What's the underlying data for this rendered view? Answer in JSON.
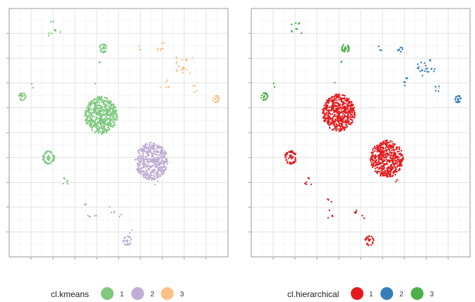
{
  "chart_data": [
    {
      "type": "scatter",
      "title": "",
      "xlabel": "",
      "ylabel": "",
      "grid": true,
      "axis_ticks_shown": true,
      "axis_labels_shown": false,
      "xlim": [
        0,
        100
      ],
      "ylim": [
        0,
        100
      ],
      "legend": {
        "title": "cl.kmeans",
        "placement": "bottom",
        "entries": [
          {
            "label": "1",
            "color": "#7fc97f"
          },
          {
            "label": "2",
            "color": "#beaed4"
          },
          {
            "label": "3",
            "color": "#fdc086"
          }
        ]
      },
      "clusters": [
        {
          "cluster": "1",
          "shape": "disc",
          "cx": 42,
          "cy": 57,
          "r": 7.5,
          "n": 520
        },
        {
          "cluster": "1",
          "shape": "ring",
          "cx": 18,
          "cy": 40,
          "r": 2.6,
          "n": 70
        },
        {
          "cluster": "1",
          "shape": "ring",
          "cx": 43,
          "cy": 84,
          "r": 1.7,
          "n": 34
        },
        {
          "cluster": "1",
          "shape": "ring",
          "cx": 6,
          "cy": 64.5,
          "r": 1.5,
          "n": 28
        },
        {
          "cluster": "1",
          "shape": "scatter",
          "cx": 21,
          "cy": 92,
          "r": 3,
          "n": 10
        },
        {
          "cluster": "1",
          "shape": "scatter",
          "cx": 41,
          "cy": 79,
          "r": 1,
          "n": 2
        },
        {
          "cluster": "1",
          "shape": "scatter",
          "cx": 10,
          "cy": 69,
          "r": 1,
          "n": 2
        },
        {
          "cluster": "1",
          "shape": "scatter",
          "cx": 26,
          "cy": 30.5,
          "r": 1.5,
          "n": 6
        },
        {
          "cluster": "1",
          "shape": "scatter",
          "cx": 39,
          "cy": 70,
          "r": 0.5,
          "n": 1
        },
        {
          "cluster": "2",
          "shape": "disc",
          "cx": 65,
          "cy": 38.5,
          "r": 7.5,
          "n": 480
        },
        {
          "cluster": "2",
          "shape": "ring",
          "cx": 54,
          "cy": 6.5,
          "r": 1.9,
          "n": 32
        },
        {
          "cluster": "2",
          "shape": "scatter",
          "cx": 38,
          "cy": 17,
          "r": 2,
          "n": 5
        },
        {
          "cluster": "2",
          "shape": "scatter",
          "cx": 36,
          "cy": 22,
          "r": 1.5,
          "n": 3
        },
        {
          "cluster": "2",
          "shape": "scatter",
          "cx": 47,
          "cy": 19,
          "r": 1.5,
          "n": 4
        },
        {
          "cluster": "2",
          "shape": "scatter",
          "cx": 51,
          "cy": 16,
          "r": 1,
          "n": 2
        },
        {
          "cluster": "2",
          "shape": "scatter",
          "cx": 55.5,
          "cy": 10,
          "r": 1,
          "n": 2
        },
        {
          "cluster": "2",
          "shape": "scatter",
          "cx": 67,
          "cy": 30,
          "r": 1,
          "n": 2
        },
        {
          "cluster": "3",
          "shape": "ring",
          "cx": 94.5,
          "cy": 63.5,
          "r": 1.4,
          "n": 24
        },
        {
          "cluster": "3",
          "shape": "scatter",
          "cx": 80,
          "cy": 76.5,
          "r": 4,
          "n": 22
        },
        {
          "cluster": "3",
          "shape": "scatter",
          "cx": 69,
          "cy": 84.5,
          "r": 2,
          "n": 7
        },
        {
          "cluster": "3",
          "shape": "scatter",
          "cx": 59,
          "cy": 84,
          "r": 1,
          "n": 3
        },
        {
          "cluster": "3",
          "shape": "scatter",
          "cx": 71,
          "cy": 70,
          "r": 2,
          "n": 6
        },
        {
          "cluster": "3",
          "shape": "scatter",
          "cx": 85,
          "cy": 67.5,
          "r": 1.5,
          "n": 4
        }
      ]
    },
    {
      "type": "scatter",
      "title": "",
      "xlabel": "",
      "ylabel": "",
      "grid": true,
      "axis_ticks_shown": true,
      "axis_labels_shown": false,
      "xlim": [
        0,
        100
      ],
      "ylim": [
        0,
        100
      ],
      "legend": {
        "title": "cl.hierarchical",
        "placement": "bottom",
        "entries": [
          {
            "label": "1",
            "color": "#e41a1c"
          },
          {
            "label": "2",
            "color": "#377eb8"
          },
          {
            "label": "3",
            "color": "#4daf4a"
          }
        ]
      },
      "clusters": [
        {
          "cluster": "1",
          "shape": "disc",
          "cx": 40,
          "cy": 58,
          "r": 7.5,
          "n": 520
        },
        {
          "cluster": "1",
          "shape": "disc",
          "cx": 62,
          "cy": 39.5,
          "r": 7.5,
          "n": 480
        },
        {
          "cluster": "1",
          "shape": "ring",
          "cx": 18,
          "cy": 40,
          "r": 2.6,
          "n": 70
        },
        {
          "cluster": "1",
          "shape": "ring",
          "cx": 54,
          "cy": 6.5,
          "r": 1.9,
          "n": 32
        },
        {
          "cluster": "1",
          "shape": "scatter",
          "cx": 37,
          "cy": 17,
          "r": 2,
          "n": 5
        },
        {
          "cluster": "1",
          "shape": "scatter",
          "cx": 47,
          "cy": 19,
          "r": 1.5,
          "n": 4
        },
        {
          "cluster": "1",
          "shape": "scatter",
          "cx": 26,
          "cy": 30.5,
          "r": 1.5,
          "n": 6
        },
        {
          "cluster": "1",
          "shape": "scatter",
          "cx": 36,
          "cy": 22,
          "r": 1.5,
          "n": 3
        },
        {
          "cluster": "1",
          "shape": "scatter",
          "cx": 51,
          "cy": 16,
          "r": 1,
          "n": 2
        },
        {
          "cluster": "1",
          "shape": "scatter",
          "cx": 66,
          "cy": 30,
          "r": 1,
          "n": 2
        },
        {
          "cluster": "2",
          "shape": "ring",
          "cx": 94.5,
          "cy": 63.5,
          "r": 1.4,
          "n": 24
        },
        {
          "cluster": "2",
          "shape": "scatter",
          "cx": 80,
          "cy": 76.5,
          "r": 4,
          "n": 22
        },
        {
          "cluster": "2",
          "shape": "scatter",
          "cx": 69,
          "cy": 84.5,
          "r": 2,
          "n": 7
        },
        {
          "cluster": "2",
          "shape": "scatter",
          "cx": 59,
          "cy": 84,
          "r": 1,
          "n": 3
        },
        {
          "cluster": "2",
          "shape": "scatter",
          "cx": 71,
          "cy": 70,
          "r": 2,
          "n": 6
        },
        {
          "cluster": "2",
          "shape": "scatter",
          "cx": 85,
          "cy": 67.5,
          "r": 1.5,
          "n": 4
        },
        {
          "cluster": "3",
          "shape": "ring",
          "cx": 43,
          "cy": 84,
          "r": 1.7,
          "n": 34
        },
        {
          "cluster": "3",
          "shape": "ring",
          "cx": 6,
          "cy": 64.5,
          "r": 1.5,
          "n": 28
        },
        {
          "cluster": "3",
          "shape": "scatter",
          "cx": 21,
          "cy": 92,
          "r": 3,
          "n": 10
        },
        {
          "cluster": "3",
          "shape": "scatter",
          "cx": 41,
          "cy": 79,
          "r": 1,
          "n": 2
        },
        {
          "cluster": "3",
          "shape": "scatter",
          "cx": 10,
          "cy": 69,
          "r": 1,
          "n": 2
        },
        {
          "cluster": "3",
          "shape": "scatter",
          "cx": 38,
          "cy": 70,
          "r": 0.5,
          "n": 1
        }
      ]
    }
  ]
}
